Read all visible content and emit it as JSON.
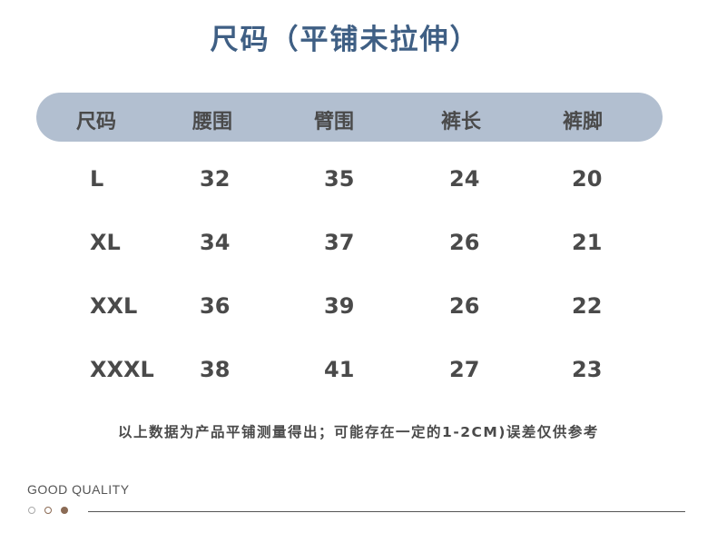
{
  "title": "尺码（平铺未拉伸）",
  "table": {
    "headers": [
      "尺码",
      "腰围",
      "臂围",
      "裤长",
      "裤脚"
    ],
    "rows": [
      [
        "L",
        "32",
        "35",
        "24",
        "20"
      ],
      [
        "XL",
        "34",
        "37",
        "26",
        "21"
      ],
      [
        "XXL",
        "36",
        "39",
        "26",
        "22"
      ],
      [
        "XXXL",
        "38",
        "41",
        "27",
        "23"
      ]
    ]
  },
  "note": "以上数据为产品平铺测量得出；可能存在一定的1-2CM)误差仅供参考",
  "footer": {
    "tagline": "GOOD QUALITY"
  },
  "colors": {
    "title": "#3f5f84",
    "header_bar": "#b2bfd0",
    "text": "#4a4a4a",
    "dot_accent": "#8b6b55"
  }
}
